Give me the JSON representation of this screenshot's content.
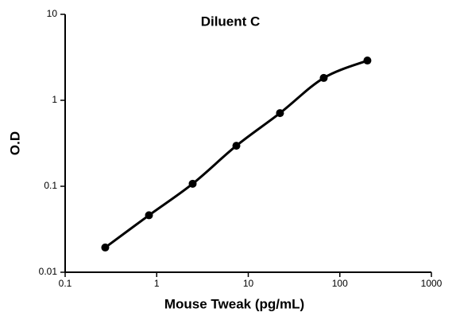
{
  "chart_data": {
    "type": "line",
    "title": "Diluent C",
    "x_label": "Mouse Tweak (pg/mL)",
    "y_label": "O.D",
    "x": [
      0.274,
      0.823,
      2.47,
      7.41,
      22.2,
      66.7,
      200
    ],
    "values": [
      0.0194,
      0.046,
      0.107,
      0.296,
      0.71,
      1.82,
      2.9
    ],
    "color": "#000000",
    "x_log": true,
    "y_log": true,
    "xlim": [
      0.1,
      1000
    ],
    "ylim": [
      0.01,
      10
    ],
    "xticks": [
      0.1,
      1,
      10,
      100,
      1000
    ],
    "yticks": [
      0.01,
      0.1,
      1,
      10
    ]
  }
}
